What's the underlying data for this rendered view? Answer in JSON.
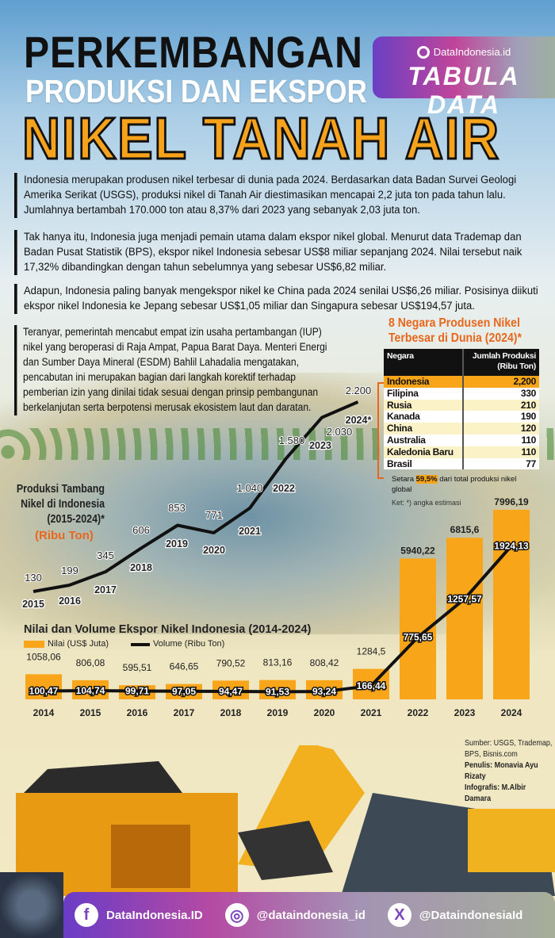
{
  "header": {
    "line1": "PERKEMBANGAN",
    "line2": "PRODUKSI DAN EKSPOR",
    "line3": "NIKEL TANAH AIR"
  },
  "badge": {
    "brand": "DataIndonesia.id",
    "title": "TABULA DATA"
  },
  "paragraphs": [
    "Indonesia merupakan produsen nikel terbesar di dunia pada 2024. Berdasarkan data Badan Survei Geologi Amerika Serikat (USGS), produksi nikel di Tanah Air diestimasikan mencapai 2,2 juta ton pada tahun lalu. Jumlahnya bertambah 170.000 ton atau 8,37% dari 2023 yang sebanyak 2,03 juta ton.",
    "Tak hanya itu, Indonesia juga menjadi pemain utama dalam ekspor nikel global. Menurut data Trademap dan Badan Pusat Statistik (BPS), ekspor nikel Indonesia sebesar US$8 miliar sepanjang 2024. Nilai tersebut naik 17,32% dibandingkan dengan tahun sebelumnya yang sebesar US$6,82 miliar.",
    "Adapun, Indonesia paling banyak mengekspor nikel ke China pada 2024 senilai US$6,26 miliar. Posisinya diikuti ekspor nikel Indonesia ke Jepang sebesar US$1,05 miliar dan Singapura sebesar US$194,57 juta.",
    "Teranyar, pemerintah mencabut empat izin usaha pertambangan (IUP) nikel yang beroperasi di Raja Ampat, Papua Barat Daya. Menteri Energi dan Sumber Daya Mineral (ESDM) Bahlil Lahadalia mengatakan, pencabutan ini merupakan bagian dari langkah korektif terhadap pemberian izin yang dinilai tidak sesuai dengan prinsip pembangunan berkelanjutan serta berpotensi merusak ekosistem laut dan daratan."
  ],
  "table": {
    "title": "8 Negara Produsen Nikel Terbesar di Dunia (2024)*",
    "headers": [
      "Negara",
      "Jumlah Produksi (Ribu Ton)"
    ],
    "rows": [
      [
        "Indonesia",
        "2,200"
      ],
      [
        "Filipina",
        "330"
      ],
      [
        "Rusia",
        "210"
      ],
      [
        "Kanada",
        "190"
      ],
      [
        "China",
        "120"
      ],
      [
        "Australia",
        "110"
      ],
      [
        "Kaledonia Baru",
        "110"
      ],
      [
        "Brasil",
        "77"
      ]
    ],
    "note_prefix": "Setara ",
    "note_highlight": "59,5%",
    "note_suffix": " dari total produksi nikel global",
    "ket": "Ket: *) angka estimasi"
  },
  "chart_data": [
    {
      "type": "line",
      "title": "Produksi Tambang Nikel di Indonesia (2015-2024)*",
      "unit": "(Ribu Ton)",
      "categories": [
        "2015",
        "2016",
        "2017",
        "2018",
        "2019",
        "2020",
        "2021",
        "2022",
        "2023",
        "2024*"
      ],
      "values": [
        130,
        199,
        345,
        606,
        853,
        771,
        1040,
        1580,
        2030,
        2200
      ],
      "labels": [
        "130",
        "199",
        "345",
        "606",
        "853",
        "771",
        "1.040",
        "1.580",
        "2.030",
        "2.200"
      ],
      "color": "#111111"
    },
    {
      "type": "bar",
      "title": "Nilai dan Volume Ekspor Nikel Indonesia (2014-2024)",
      "categories": [
        "2014",
        "2015",
        "2016",
        "2017",
        "2018",
        "2019",
        "2020",
        "2021",
        "2022",
        "2023",
        "2024"
      ],
      "series": [
        {
          "name": "Nilai (US$ Juta)",
          "type": "bar",
          "color": "#f9a51a",
          "values": [
            1058.06,
            806.08,
            595.51,
            646.65,
            790.52,
            813.16,
            808.42,
            1284.5,
            5940.22,
            6815.6,
            7996.19
          ],
          "labels": [
            "1058,06",
            "806,08",
            "595,51",
            "646,65",
            "790,52",
            "813,16",
            "808,42",
            "1284,5",
            "5940,22",
            "6815,6",
            "7996,19"
          ]
        },
        {
          "name": "Volume (Ribu Ton)",
          "type": "line",
          "color": "#111111",
          "values": [
            100.47,
            104.74,
            99.71,
            97.05,
            94.47,
            91.53,
            93.24,
            166.44,
            775.65,
            1257.57,
            1924.13
          ],
          "labels": [
            "100,47",
            "104,74",
            "99,71",
            "97,05",
            "94,47",
            "91,53",
            "93,24",
            "166,44",
            "775,65",
            "1257,57",
            "1924,13"
          ]
        }
      ]
    }
  ],
  "credits": {
    "source": "Sumber: USGS, Trademap, BPS, Bisnis.com",
    "writer": "Penulis: Monavia Ayu Rizaty",
    "infographic": "Infografis: M.Albir Damara"
  },
  "footer": {
    "facebook": "DataIndonesia.ID",
    "instagram": "@dataindonesia_id",
    "x": "@DataindonesiaId"
  },
  "colors": {
    "accent": "#f9a51a",
    "title_orange": "#e8671c",
    "dark": "#111111"
  }
}
